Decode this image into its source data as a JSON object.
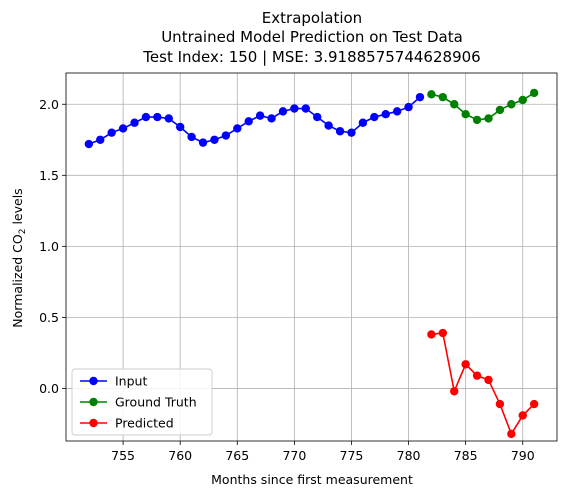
{
  "chart_data": {
    "type": "line",
    "title_lines": [
      "Extrapolation",
      "Untrained Model Prediction on Test Data",
      "Test Index: 150 | MSE: 3.9188575744628906"
    ],
    "xlabel": "Months since first measurement",
    "ylabel_main": "Normalized CO",
    "ylabel_sub": "2",
    "ylabel_tail": " levels",
    "xlim": [
      750,
      793
    ],
    "ylim": [
      -0.37,
      2.22
    ],
    "xticks": [
      755,
      760,
      765,
      770,
      775,
      780,
      785,
      790
    ],
    "yticks": [
      0.0,
      0.5,
      1.0,
      1.5,
      2.0
    ],
    "xtick_labels": [
      "755",
      "760",
      "765",
      "770",
      "775",
      "780",
      "785",
      "790"
    ],
    "ytick_labels": [
      "0.0",
      "0.5",
      "1.0",
      "1.5",
      "2.0"
    ],
    "grid": true,
    "legend_position": "lower-left",
    "series": [
      {
        "name": "Input",
        "color": "#0000ff",
        "x": [
          752,
          753,
          754,
          755,
          756,
          757,
          758,
          759,
          760,
          761,
          762,
          763,
          764,
          765,
          766,
          767,
          768,
          769,
          770,
          771,
          772,
          773,
          774,
          775,
          776,
          777,
          778,
          779,
          780,
          781
        ],
        "y": [
          1.72,
          1.75,
          1.8,
          1.83,
          1.87,
          1.91,
          1.91,
          1.9,
          1.84,
          1.77,
          1.73,
          1.75,
          1.78,
          1.83,
          1.88,
          1.92,
          1.9,
          1.95,
          1.97,
          1.97,
          1.91,
          1.85,
          1.81,
          1.8,
          1.87,
          1.91,
          1.93,
          1.95,
          1.98,
          2.05
        ]
      },
      {
        "name": "Ground Truth",
        "color": "#008000",
        "x": [
          782,
          783,
          784,
          785,
          786,
          787,
          788,
          789,
          790,
          791
        ],
        "y": [
          2.07,
          2.05,
          2.0,
          1.93,
          1.89,
          1.9,
          1.96,
          2.0,
          2.03,
          2.08
        ]
      },
      {
        "name": "Predicted",
        "color": "#ff0000",
        "x": [
          782,
          783,
          784,
          785,
          786,
          787,
          788,
          789,
          790,
          791
        ],
        "y": [
          0.38,
          0.39,
          -0.02,
          0.17,
          0.09,
          0.06,
          -0.11,
          -0.32,
          -0.19,
          -0.11
        ]
      }
    ]
  }
}
